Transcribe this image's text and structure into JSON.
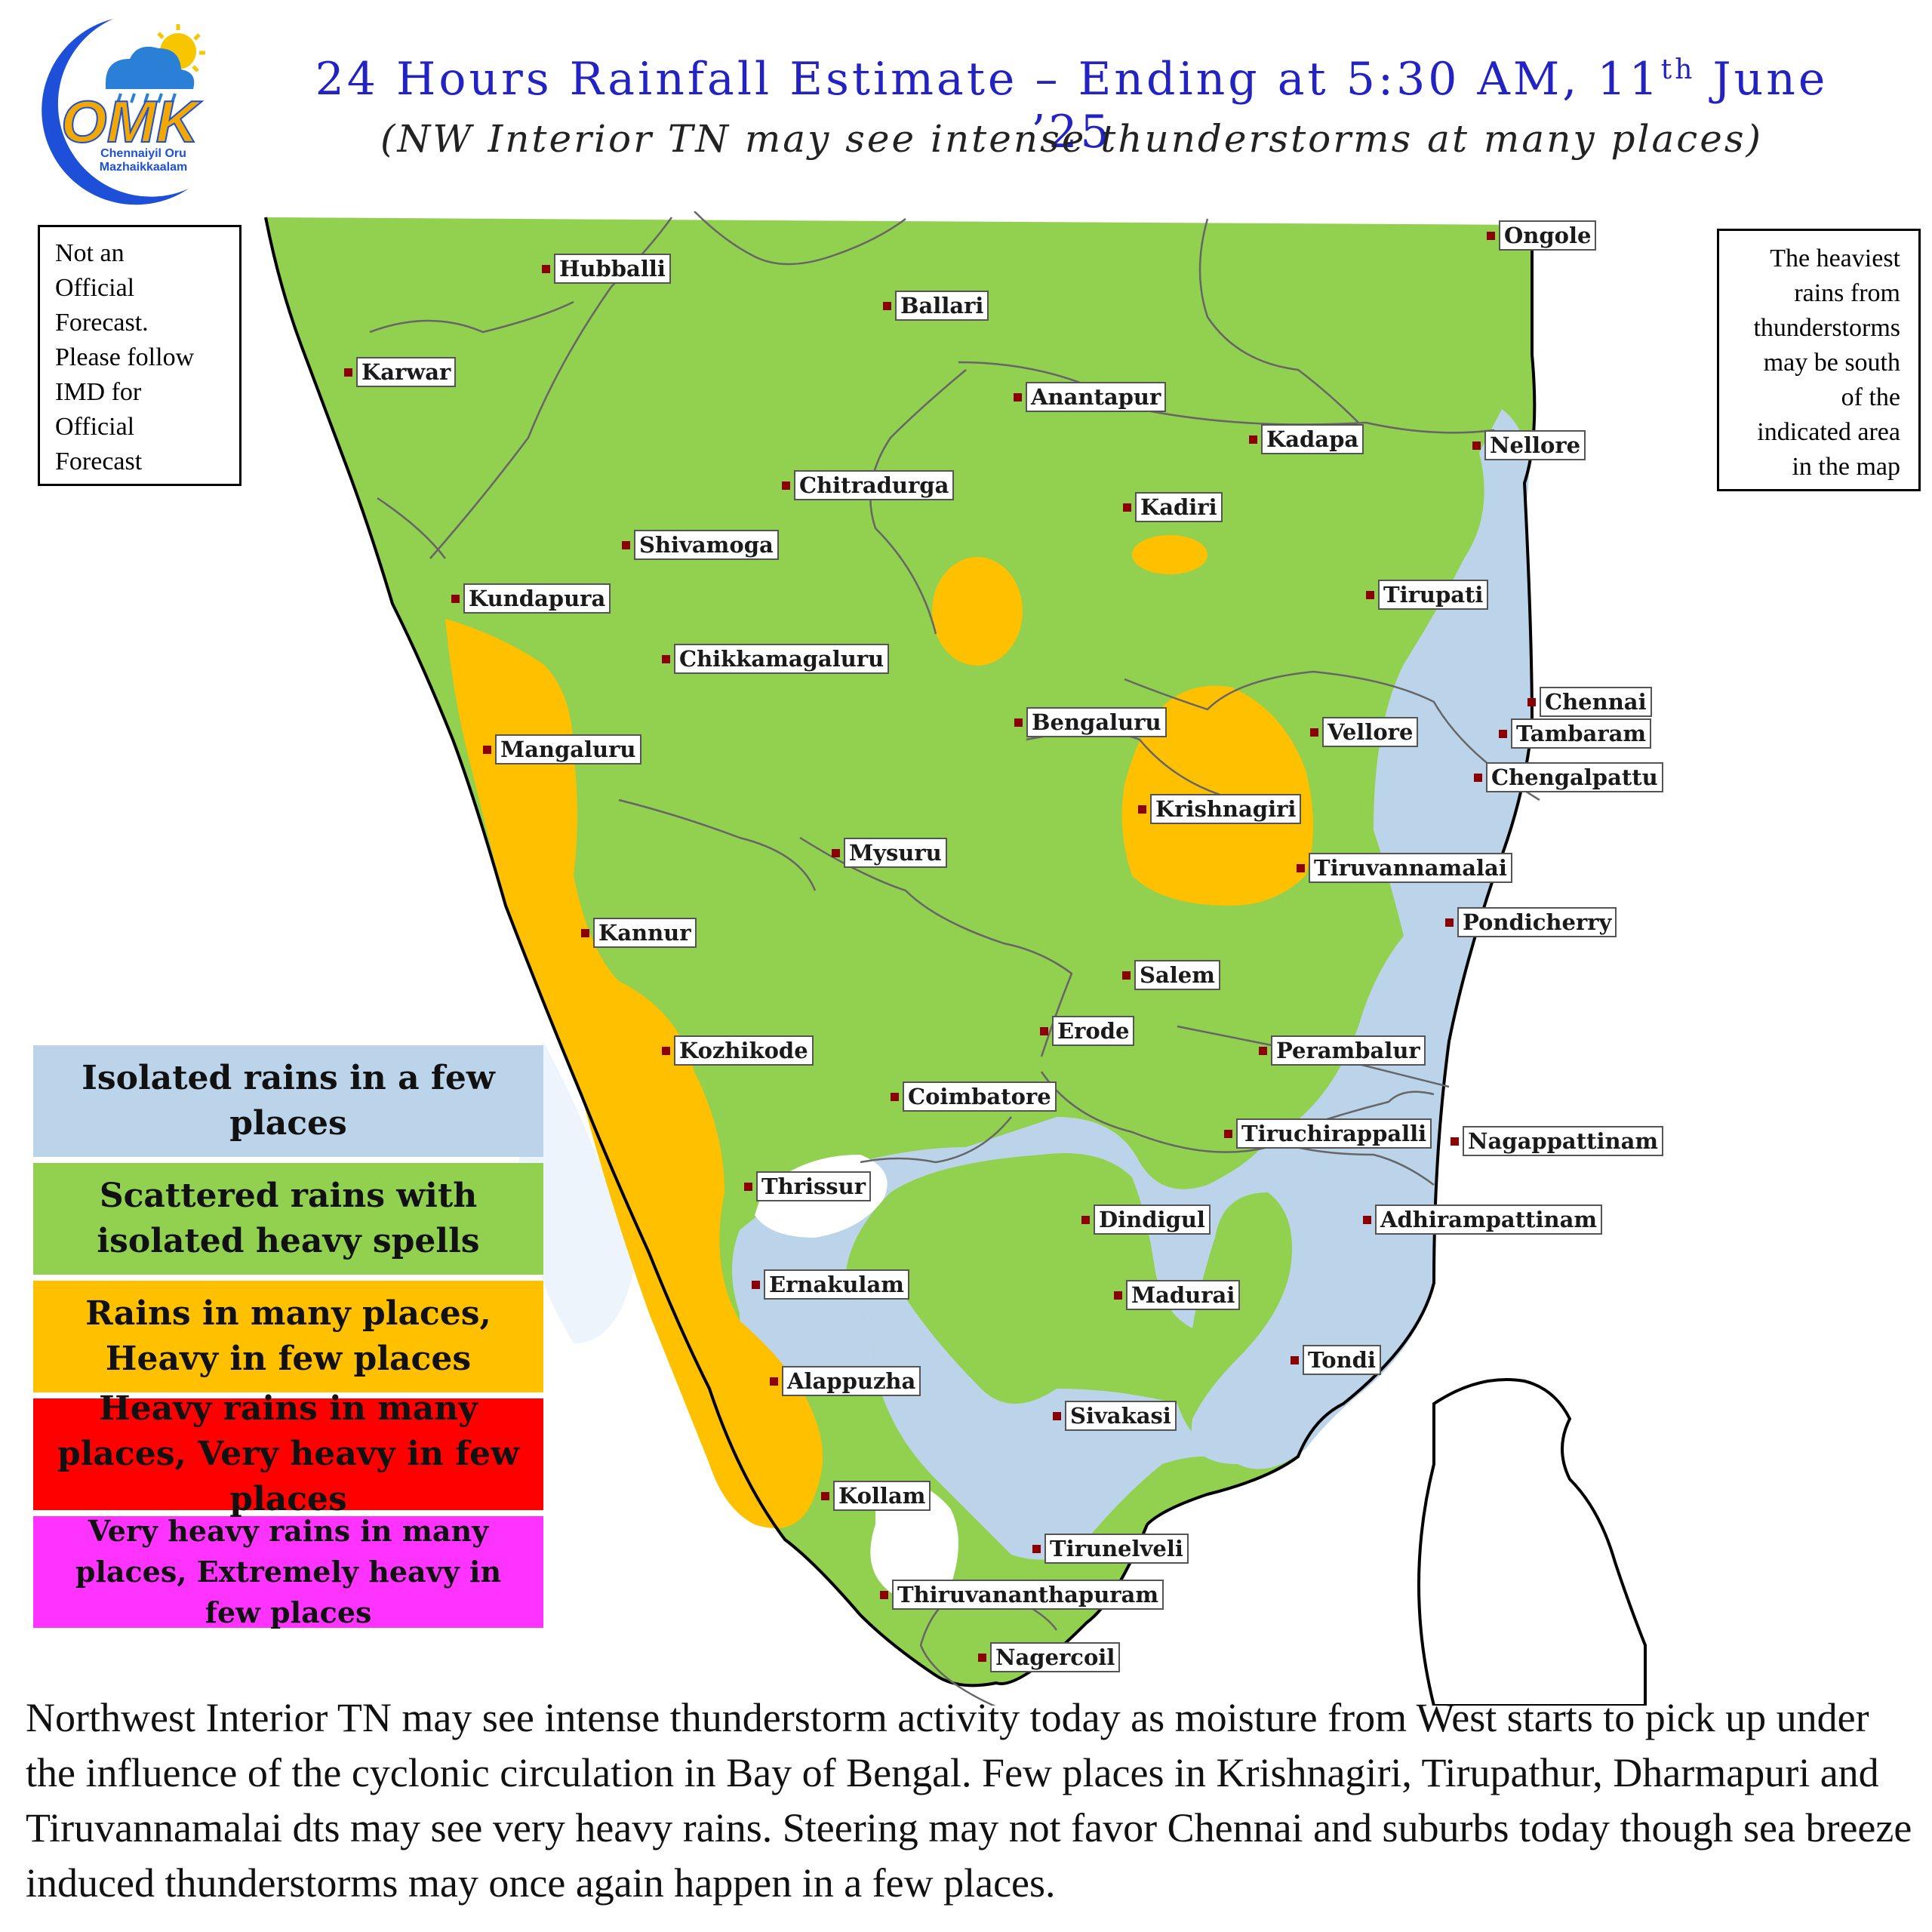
{
  "logo": {
    "text": "OMK",
    "tagline_line1": "Chennaiyil Oru",
    "tagline_line2": "Mazhaikkaalam",
    "icons": [
      "crescent-moon-icon",
      "rain-cloud-icon",
      "sun-icon"
    ],
    "colors": {
      "moon": "#1d4fd8",
      "cloud": "#2a7fd6",
      "sun": "#f7c600",
      "text": "#f2a800"
    }
  },
  "title": {
    "main_before": "24 Hours Rainfall Estimate – Ending at 5:30 AM, 11",
    "main_sup": "th",
    "main_after": " June ’25",
    "subtitle": "(NW Interior TN may see intense thunderstorms at many places)"
  },
  "disclaimer": {
    "lines": [
      "Not an",
      "Official",
      "Forecast.",
      "Please follow",
      "IMD for",
      "Official",
      "Forecast"
    ]
  },
  "heaviest_note": {
    "lines": [
      "The heaviest",
      "rains from",
      "thunderstorms",
      "may be south",
      "of the",
      "indicated area",
      "in the map"
    ]
  },
  "map": {
    "zone_colors": {
      "isolated": "#bcd4ea",
      "scattered": "#92d050",
      "many": "#ffc000",
      "heavy": "#ff0000",
      "very_heavy": "#ff33ff"
    },
    "cities": [
      {
        "name": "Hubballi"
      },
      {
        "name": "Ballari"
      },
      {
        "name": "Ongole"
      },
      {
        "name": "Karwar"
      },
      {
        "name": "Anantapur"
      },
      {
        "name": "Kadapa"
      },
      {
        "name": "Nellore"
      },
      {
        "name": "Chitradurga"
      },
      {
        "name": "Kadiri"
      },
      {
        "name": "Shivamoga"
      },
      {
        "name": "Tirupati"
      },
      {
        "name": "Kundapura"
      },
      {
        "name": "Chikkamagaluru"
      },
      {
        "name": "Chennai"
      },
      {
        "name": "Tambaram"
      },
      {
        "name": "Bengaluru"
      },
      {
        "name": "Vellore"
      },
      {
        "name": "Mangaluru"
      },
      {
        "name": "Chengalpattu"
      },
      {
        "name": "Krishnagiri"
      },
      {
        "name": "Mysuru"
      },
      {
        "name": "Tiruvannamalai"
      },
      {
        "name": "Pondicherry"
      },
      {
        "name": "Kannur"
      },
      {
        "name": "Salem"
      },
      {
        "name": "Erode"
      },
      {
        "name": "Kozhikode"
      },
      {
        "name": "Perambalur"
      },
      {
        "name": "Coimbatore"
      },
      {
        "name": "Tiruchirappalli"
      },
      {
        "name": "Nagappattinam"
      },
      {
        "name": "Thrissur"
      },
      {
        "name": "Dindigul"
      },
      {
        "name": "Adhirampattinam"
      },
      {
        "name": "Ernakulam"
      },
      {
        "name": "Madurai"
      },
      {
        "name": "Tondi"
      },
      {
        "name": "Alappuzha"
      },
      {
        "name": "Sivakasi"
      },
      {
        "name": "Kollam"
      },
      {
        "name": "Tirunelveli"
      },
      {
        "name": "Thiruvananthapuram"
      },
      {
        "name": "Nagercoil"
      }
    ]
  },
  "legend": {
    "items": [
      {
        "label": "Isolated rains in a few places",
        "color": "#bcd4ea",
        "text_color": "#111111"
      },
      {
        "label": "Scattered rains with isolated heavy spells",
        "color": "#92d050",
        "text_color": "#111111"
      },
      {
        "label": "Rains in many places, Heavy in few places",
        "color": "#ffc000",
        "text_color": "#111111"
      },
      {
        "label": "Heavy rains in many places, Very heavy in few places",
        "color": "#ff0000",
        "text_color": "#111111"
      },
      {
        "label": "Very heavy rains in many places, Extremely heavy in few places",
        "color": "#ff33ff",
        "text_color": "#111111"
      }
    ]
  },
  "bottom_text": "Northwest Interior TN may see intense thunderstorm activity today as moisture from West starts to pick up under the influence of  the cyclonic circulation in Bay of  Bengal.  Few places in Krishnagiri, Tirupathur, Dharmapuri and Tiruvannamalai dts may see very heavy rains. Steering may not favor Chennai and suburbs today though sea breeze induced thunderstorms may once again happen in a few places."
}
